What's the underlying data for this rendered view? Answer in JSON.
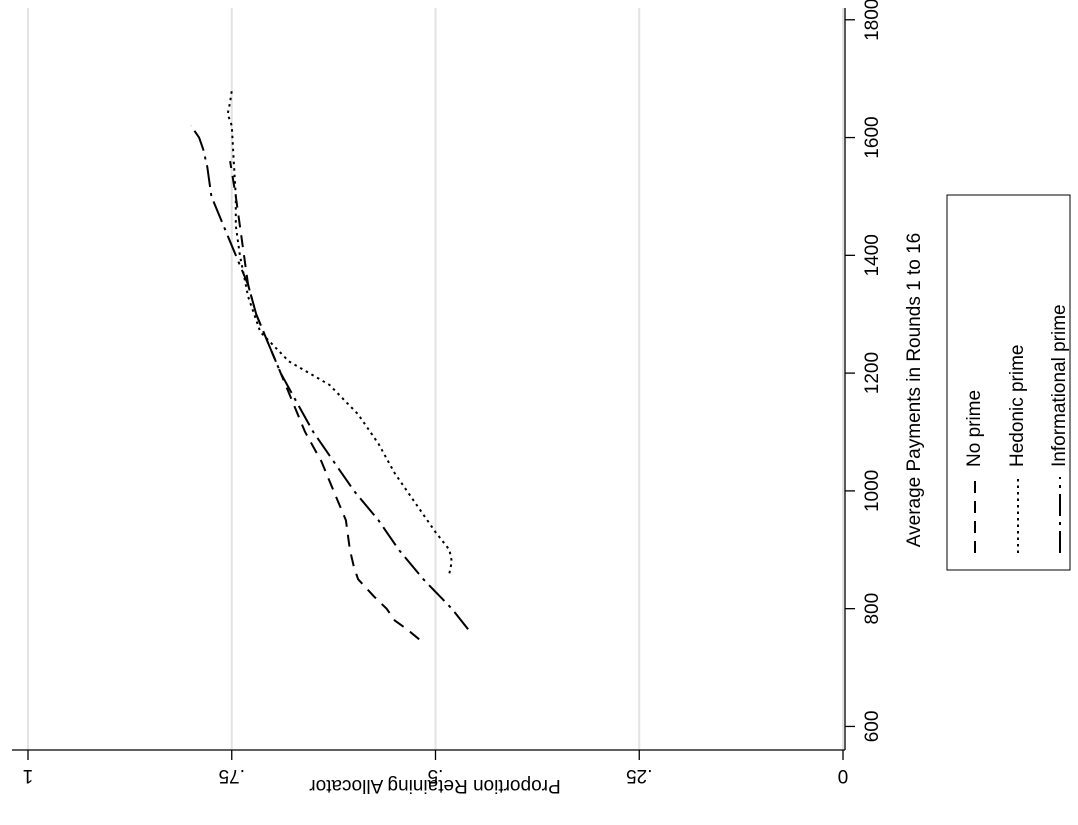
{
  "chart_data": {
    "type": "line",
    "orientation": "rotated-90-clockwise",
    "xlabel": "Average Payments in Rounds 1 to 16",
    "ylabel": "Proportion Retaining Allocator",
    "xlim": [
      560,
      1820
    ],
    "ylim": [
      0,
      1
    ],
    "x_ticks": [
      {
        "value": 600,
        "label": "600"
      },
      {
        "value": 800,
        "label": "800"
      },
      {
        "value": 1000,
        "label": "1000"
      },
      {
        "value": 1200,
        "label": "1200"
      },
      {
        "value": 1400,
        "label": "1400"
      },
      {
        "value": 1600,
        "label": "1600"
      },
      {
        "value": 1800,
        "label": "1800"
      }
    ],
    "y_ticks": [
      {
        "value": 0,
        "label": "0"
      },
      {
        "value": 0.25,
        "label": ".25"
      },
      {
        "value": 0.5,
        "label": ".5"
      },
      {
        "value": 0.75,
        "label": ".75"
      },
      {
        "value": 1,
        "label": "1"
      }
    ],
    "grid": true,
    "legend_position": "right",
    "series": [
      {
        "name": "No prime",
        "style": "dashed",
        "points": [
          [
            748,
            0.52
          ],
          [
            765,
            0.535
          ],
          [
            780,
            0.55
          ],
          [
            800,
            0.56
          ],
          [
            820,
            0.575
          ],
          [
            850,
            0.595
          ],
          [
            870,
            0.6
          ],
          [
            900,
            0.605
          ],
          [
            950,
            0.61
          ],
          [
            1000,
            0.625
          ],
          [
            1050,
            0.64
          ],
          [
            1100,
            0.66
          ],
          [
            1150,
            0.675
          ],
          [
            1200,
            0.69
          ],
          [
            1250,
            0.705
          ],
          [
            1300,
            0.72
          ],
          [
            1350,
            0.73
          ],
          [
            1400,
            0.735
          ],
          [
            1450,
            0.74
          ],
          [
            1500,
            0.745
          ],
          [
            1560,
            0.752
          ]
        ]
      },
      {
        "name": "Hedonic prime",
        "style": "dotted",
        "points": [
          [
            860,
            0.483
          ],
          [
            880,
            0.48
          ],
          [
            900,
            0.483
          ],
          [
            930,
            0.5
          ],
          [
            980,
            0.525
          ],
          [
            1030,
            0.55
          ],
          [
            1080,
            0.57
          ],
          [
            1130,
            0.595
          ],
          [
            1180,
            0.63
          ],
          [
            1220,
            0.68
          ],
          [
            1270,
            0.715
          ],
          [
            1330,
            0.73
          ],
          [
            1400,
            0.74
          ],
          [
            1450,
            0.745
          ],
          [
            1500,
            0.745
          ],
          [
            1570,
            0.748
          ],
          [
            1620,
            0.75
          ],
          [
            1640,
            0.755
          ],
          [
            1660,
            0.752
          ],
          [
            1680,
            0.75
          ]
        ]
      },
      {
        "name": "Informational prime",
        "style": "dash-dot",
        "points": [
          [
            765,
            0.46
          ],
          [
            800,
            0.48
          ],
          [
            850,
            0.515
          ],
          [
            900,
            0.545
          ],
          [
            950,
            0.57
          ],
          [
            1000,
            0.6
          ],
          [
            1050,
            0.625
          ],
          [
            1100,
            0.65
          ],
          [
            1150,
            0.67
          ],
          [
            1200,
            0.69
          ],
          [
            1250,
            0.705
          ],
          [
            1300,
            0.72
          ],
          [
            1350,
            0.73
          ],
          [
            1400,
            0.745
          ],
          [
            1450,
            0.76
          ],
          [
            1500,
            0.775
          ],
          [
            1550,
            0.78
          ],
          [
            1580,
            0.785
          ],
          [
            1600,
            0.79
          ],
          [
            1620,
            0.8
          ]
        ]
      }
    ]
  }
}
